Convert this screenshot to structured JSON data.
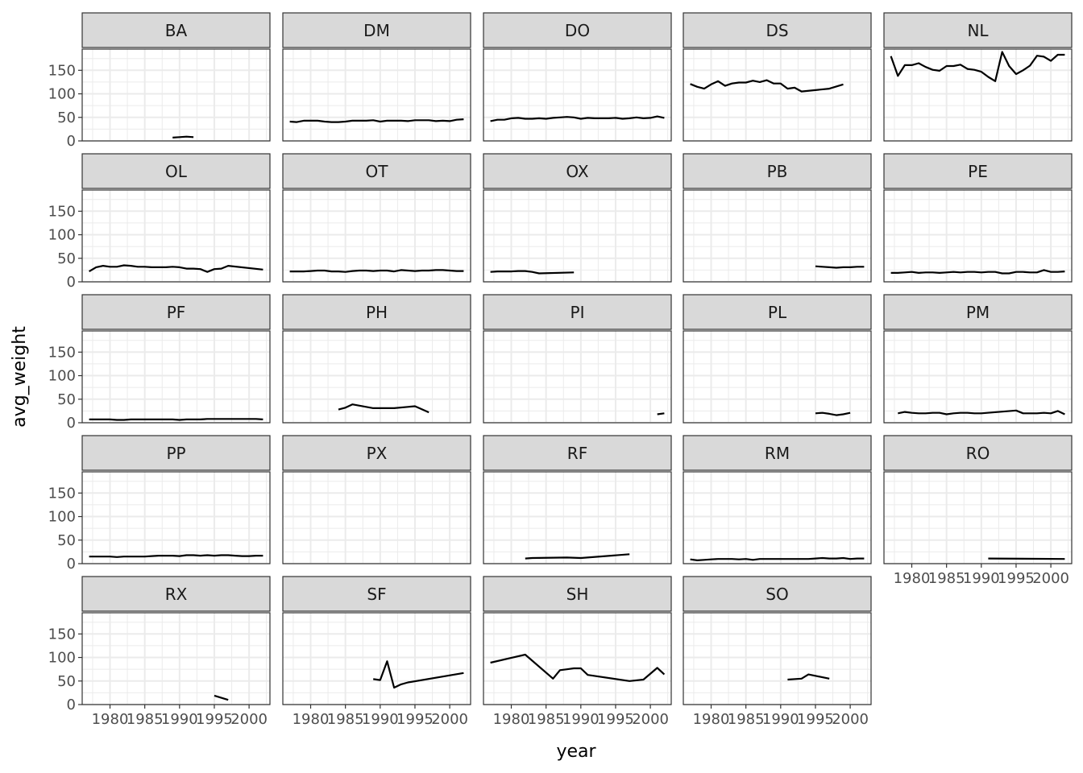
{
  "chart_data": {
    "type": "line",
    "layout": "facet_wrap",
    "ncol": 5,
    "xlabel": "year",
    "ylabel": "avg_weight",
    "xlim": [
      1976,
      2003
    ],
    "ylim": [
      0,
      195
    ],
    "x_ticks": [
      1980,
      1985,
      1990,
      1995,
      2000
    ],
    "y_ticks": [
      0,
      50,
      100,
      150
    ],
    "x_minor_ticks": [
      1977.5,
      1982.5,
      1987.5,
      1992.5,
      1997.5,
      2002.5
    ],
    "y_minor_ticks": [
      25,
      75,
      125,
      175
    ],
    "grid": true,
    "line_color": "#000000",
    "strip_fill": "#d9d9d9",
    "panel_border": "#333333",
    "grid_color": "#ebebeb",
    "panels": [
      {
        "species": "BA",
        "x": [
          1989,
          1990,
          1991,
          1992
        ],
        "y": [
          7,
          8,
          9,
          8
        ]
      },
      {
        "species": "DM",
        "x": [
          1977,
          1978,
          1979,
          1980,
          1981,
          1982,
          1983,
          1984,
          1985,
          1986,
          1987,
          1988,
          1989,
          1990,
          1991,
          1992,
          1993,
          1994,
          1995,
          1996,
          1997,
          1998,
          1999,
          2000,
          2001,
          2002
        ],
        "y": [
          41,
          40,
          43,
          43,
          43,
          41,
          40,
          40,
          41,
          43,
          43,
          43,
          44,
          41,
          43,
          43,
          43,
          42,
          44,
          44,
          44,
          42,
          43,
          42,
          45,
          46
        ]
      },
      {
        "species": "DO",
        "x": [
          1977,
          1978,
          1979,
          1980,
          1981,
          1982,
          1983,
          1984,
          1985,
          1986,
          1987,
          1988,
          1989,
          1990,
          1991,
          1992,
          1993,
          1994,
          1995,
          1996,
          1997,
          1998,
          1999,
          2000,
          2001,
          2002
        ],
        "y": [
          42,
          45,
          45,
          48,
          49,
          47,
          47,
          48,
          47,
          49,
          50,
          51,
          50,
          47,
          49,
          48,
          48,
          48,
          49,
          47,
          48,
          50,
          48,
          49,
          52,
          49
        ]
      },
      {
        "species": "DS",
        "x": [
          1977,
          1978,
          1979,
          1980,
          1981,
          1982,
          1983,
          1984,
          1985,
          1986,
          1987,
          1988,
          1989,
          1990,
          1991,
          1992,
          1993,
          1997,
          1999
        ],
        "y": [
          121,
          115,
          111,
          120,
          127,
          117,
          122,
          124,
          124,
          128,
          125,
          129,
          122,
          122,
          111,
          113,
          105,
          111,
          120
        ]
      },
      {
        "species": "NL",
        "x": [
          1977,
          1978,
          1979,
          1980,
          1981,
          1982,
          1983,
          1984,
          1985,
          1986,
          1987,
          1988,
          1989,
          1990,
          1991,
          1992,
          1993,
          1994,
          1995,
          1996,
          1997,
          1998,
          1999,
          2000,
          2001,
          2002
        ],
        "y": [
          180,
          138,
          161,
          161,
          165,
          157,
          151,
          149,
          159,
          159,
          162,
          153,
          151,
          147,
          136,
          127,
          189,
          159,
          142,
          150,
          160,
          181,
          179,
          170,
          183,
          183
        ]
      },
      {
        "species": "OL",
        "x": [
          1977,
          1978,
          1979,
          1980,
          1981,
          1982,
          1983,
          1984,
          1985,
          1986,
          1987,
          1988,
          1989,
          1990,
          1991,
          1992,
          1993,
          1994,
          1995,
          1996,
          1997,
          2002
        ],
        "y": [
          22,
          31,
          34,
          32,
          32,
          35,
          34,
          32,
          32,
          31,
          31,
          31,
          32,
          31,
          28,
          28,
          27,
          21,
          27,
          28,
          34,
          26
        ]
      },
      {
        "species": "OT",
        "x": [
          1977,
          1978,
          1979,
          1980,
          1981,
          1982,
          1983,
          1984,
          1985,
          1986,
          1987,
          1988,
          1989,
          1990,
          1991,
          1992,
          1993,
          1994,
          1995,
          1996,
          1997,
          1998,
          1999,
          2000,
          2001,
          2002
        ],
        "y": [
          22,
          22,
          22,
          23,
          24,
          24,
          22,
          22,
          21,
          23,
          24,
          24,
          23,
          24,
          24,
          22,
          25,
          24,
          23,
          24,
          24,
          25,
          25,
          24,
          23,
          23
        ]
      },
      {
        "species": "OX",
        "x": [
          1977,
          1978,
          1979,
          1980,
          1981,
          1982,
          1983,
          1984,
          1989
        ],
        "y": [
          21,
          22,
          22,
          22,
          23,
          23,
          21,
          18,
          20
        ]
      },
      {
        "species": "PB",
        "x": [
          1995,
          1996,
          1997,
          1998,
          1999,
          2000,
          2001,
          2002
        ],
        "y": [
          33,
          32,
          31,
          30,
          31,
          31,
          32,
          32
        ]
      },
      {
        "species": "PE",
        "x": [
          1977,
          1978,
          1979,
          1980,
          1981,
          1982,
          1983,
          1984,
          1985,
          1986,
          1987,
          1988,
          1989,
          1990,
          1991,
          1992,
          1993,
          1994,
          1995,
          1996,
          1997,
          1998,
          1999,
          2000,
          2001,
          2002
        ],
        "y": [
          19,
          19,
          20,
          21,
          19,
          20,
          20,
          19,
          20,
          21,
          20,
          21,
          21,
          20,
          21,
          21,
          18,
          18,
          21,
          21,
          20,
          20,
          25,
          21,
          21,
          22
        ]
      },
      {
        "species": "PF",
        "x": [
          1977,
          1978,
          1979,
          1980,
          1981,
          1982,
          1983,
          1984,
          1985,
          1986,
          1987,
          1988,
          1989,
          1990,
          1991,
          1992,
          1993,
          1994,
          1995,
          1996,
          1997,
          1998,
          1999,
          2000,
          2001,
          2002
        ],
        "y": [
          7,
          7,
          7,
          7,
          6,
          6,
          7,
          7,
          7,
          7,
          7,
          7,
          7,
          6,
          7,
          7,
          7,
          8,
          8,
          8,
          8,
          8,
          8,
          8,
          8,
          7
        ]
      },
      {
        "species": "PH",
        "x": [
          1984,
          1985,
          1986,
          1989,
          1990,
          1992,
          1995,
          1997
        ],
        "y": [
          28,
          32,
          39,
          31,
          31,
          31,
          35,
          22
        ]
      },
      {
        "species": "PI",
        "x": [
          2001,
          2002
        ],
        "y": [
          18,
          20
        ]
      },
      {
        "species": "PL",
        "x": [
          1995,
          1996,
          1997,
          1998,
          1999,
          2000
        ],
        "y": [
          20,
          21,
          19,
          16,
          18,
          21
        ]
      },
      {
        "species": "PM",
        "x": [
          1978,
          1979,
          1980,
          1981,
          1982,
          1983,
          1984,
          1985,
          1986,
          1987,
          1988,
          1989,
          1990,
          1995,
          1996,
          1997,
          1998,
          1999,
          2000,
          2001,
          2002
        ],
        "y": [
          20,
          23,
          21,
          20,
          20,
          21,
          21,
          18,
          20,
          21,
          21,
          20,
          20,
          26,
          20,
          20,
          20,
          21,
          20,
          25,
          18
        ]
      },
      {
        "species": "PP",
        "x": [
          1977,
          1978,
          1979,
          1980,
          1981,
          1982,
          1983,
          1984,
          1985,
          1986,
          1987,
          1988,
          1989,
          1990,
          1991,
          1992,
          1993,
          1994,
          1995,
          1996,
          1997,
          1998,
          1999,
          2000,
          2001,
          2002
        ],
        "y": [
          15,
          15,
          15,
          15,
          14,
          15,
          15,
          15,
          15,
          16,
          17,
          17,
          17,
          16,
          18,
          18,
          17,
          18,
          17,
          18,
          18,
          17,
          16,
          16,
          17,
          17
        ]
      },
      {
        "species": "PX",
        "x": [],
        "y": []
      },
      {
        "species": "RF",
        "x": [
          1982,
          1983,
          1988,
          1990,
          1997
        ],
        "y": [
          11,
          12,
          13,
          12,
          20
        ]
      },
      {
        "species": "RM",
        "x": [
          1977,
          1978,
          1979,
          1980,
          1981,
          1982,
          1983,
          1984,
          1985,
          1986,
          1987,
          1988,
          1989,
          1990,
          1991,
          1992,
          1993,
          1994,
          1995,
          1996,
          1997,
          1998,
          1999,
          2000,
          2001,
          2002
        ],
        "y": [
          9,
          7,
          8,
          9,
          10,
          10,
          10,
          9,
          10,
          8,
          10,
          10,
          10,
          10,
          10,
          10,
          10,
          10,
          11,
          12,
          11,
          11,
          12,
          10,
          11,
          11
        ]
      },
      {
        "species": "RO",
        "x": [
          1991,
          2002
        ],
        "y": [
          11,
          10
        ]
      },
      {
        "species": "RX",
        "x": [
          1995,
          1997
        ],
        "y": [
          19,
          10
        ]
      },
      {
        "species": "SF",
        "x": [
          1989,
          1990,
          1991,
          1992,
          1993,
          1994,
          2002
        ],
        "y": [
          54,
          52,
          92,
          36,
          43,
          47,
          67
        ]
      },
      {
        "species": "SH",
        "x": [
          1977,
          1982,
          1986,
          1987,
          1988,
          1989,
          1990,
          1991,
          1997,
          1999,
          2001,
          2002
        ],
        "y": [
          89,
          106,
          55,
          73,
          75,
          77,
          77,
          63,
          50,
          53,
          78,
          64
        ]
      },
      {
        "species": "SO",
        "x": [
          1991,
          1993,
          1994,
          1997
        ],
        "y": [
          53,
          55,
          64,
          55
        ]
      }
    ]
  }
}
